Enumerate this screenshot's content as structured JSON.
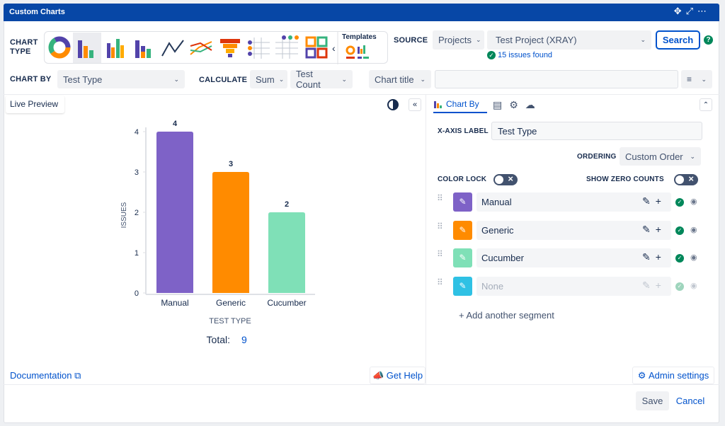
{
  "header": {
    "title": "Custom Charts"
  },
  "toolbar": {
    "chart_type_label": "CHART TYPE",
    "templates": "Templates",
    "source_label": "SOURCE",
    "source": "Projects",
    "project": "Test Project (XRAY)",
    "issues_found": "15 issues found",
    "search": "Search",
    "chart_by_label": "CHART BY",
    "chart_by": "Test Type",
    "calculate_label": "CALCULATE",
    "calc_function": "Sum",
    "calc_field": "Test Count",
    "chart_title": "Chart title"
  },
  "preview": {
    "tab": "Live Preview",
    "total_label": "Total:",
    "total": 9
  },
  "chart_data": {
    "type": "bar",
    "categories": [
      "Manual",
      "Generic",
      "Cucumber"
    ],
    "values": [
      4,
      3,
      2
    ],
    "colors": [
      "#7e62c7",
      "#ff8b00",
      "#7fe0b7"
    ],
    "ylim": [
      0,
      4
    ],
    "yticks": [
      0,
      1,
      2,
      3,
      4
    ],
    "y_label": "ISSUES",
    "x_label": "TEST TYPE"
  },
  "settings": {
    "tab": "Chart By",
    "x_axis_label_label": "X-AXIS LABEL",
    "x_axis_label": "Test Type",
    "ordering_label": "ORDERING",
    "ordering": "Custom Order",
    "color_lock": "COLOR LOCK",
    "show_zero_counts": "SHOW ZERO COUNTS",
    "segments": [
      {
        "name": "Manual",
        "color": "#7e62c7"
      },
      {
        "name": "Generic",
        "color": "#ff8b00"
      },
      {
        "name": "Cucumber",
        "color": "#7fe0b7"
      },
      {
        "name": "None",
        "color": "#2fc1e4"
      }
    ],
    "add_segment": "Add another segment"
  },
  "footer": {
    "documentation": "Documentation",
    "get_help": "Get Help",
    "admin_settings": "Admin settings",
    "save": "Save",
    "cancel": "Cancel"
  }
}
